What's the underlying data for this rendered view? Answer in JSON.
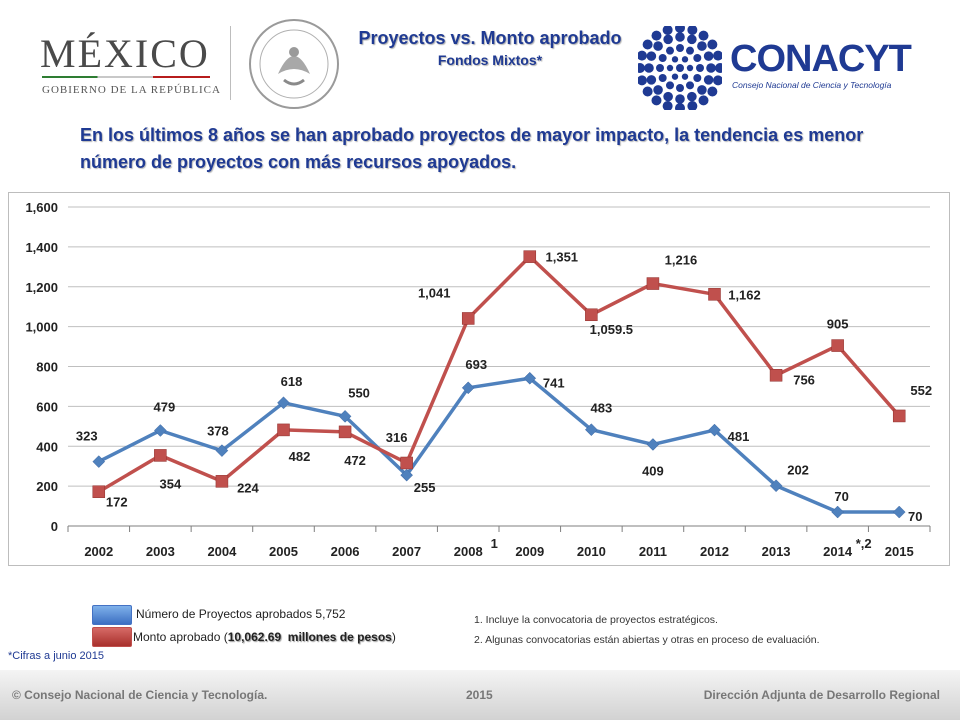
{
  "header": {
    "mexico_word": "MÉXICO",
    "mexico_sub": "GOBIERNO DE LA REPÚBLICA",
    "title": "Proyectos vs. Monto aprobado",
    "subtitle": "Fondos Mixtos*",
    "conacyt_name": "CONACYT",
    "conacyt_sub": "Consejo Nacional de Ciencia y Tecnología"
  },
  "headline": "En los últimos 8 años se han aprobado proyectos de mayor impacto, la tendencia es menor número de proyectos con más recursos apoyados.",
  "chart_data": {
    "type": "line",
    "categories": [
      "2002",
      "2003",
      "2004",
      "2005",
      "2006",
      "2007",
      "2008",
      "2009",
      "2010",
      "2011",
      "2012",
      "2013",
      "2014",
      "2015"
    ],
    "category_annotations": {
      "2008": "1",
      "2014": "*,2"
    },
    "ylim": [
      0,
      1600
    ],
    "yticks": [
      "0",
      "200",
      "400",
      "600",
      "800",
      "1,000",
      "1,200",
      "1,400",
      "1,600"
    ],
    "grid": true,
    "series": [
      {
        "name": "Número de Proyectos aprobados 5,752",
        "color": "#4f81bd",
        "marker": "diamond",
        "values": [
          323,
          479,
          378,
          618,
          550,
          255,
          693,
          741,
          483,
          409,
          481,
          202,
          70,
          70
        ],
        "labels": [
          "323",
          "479",
          "378",
          "618",
          "550",
          "255",
          "693",
          "741",
          "483",
          "409",
          "481",
          "202",
          "70",
          "70"
        ]
      },
      {
        "name": "Monto aprobado (10,062.69 millones de pesos)",
        "color": "#c0504d",
        "marker": "square",
        "values": [
          172,
          354,
          224,
          482,
          472,
          316,
          1041,
          1351,
          1059.5,
          1216,
          1162,
          756,
          905,
          552
        ],
        "labels": [
          "172",
          "354",
          "224",
          "482",
          "472",
          "316",
          "1,041",
          "1,351",
          "1,059.5",
          "1,216",
          "1,162",
          "756",
          "905",
          "552"
        ]
      }
    ]
  },
  "legend": {
    "blue_label": "Número de Proyectos aprobados 5,752",
    "red_prefix": "Monto aprobado (",
    "red_highlight": "10,062.69  millones de pesos",
    "red_suffix": ")"
  },
  "notes": {
    "cifras": "*Cifras a junio 2015",
    "note1": "1. Incluye la convocatoria de proyectos estratégicos.",
    "note2": "2. Algunas convocatorias están abiertas y otras en proceso de evaluación."
  },
  "footer": {
    "left": "© Consejo Nacional de Ciencia y Tecnología.",
    "mid": "2015",
    "right": "Dirección Adjunta de Desarrollo Regional"
  }
}
